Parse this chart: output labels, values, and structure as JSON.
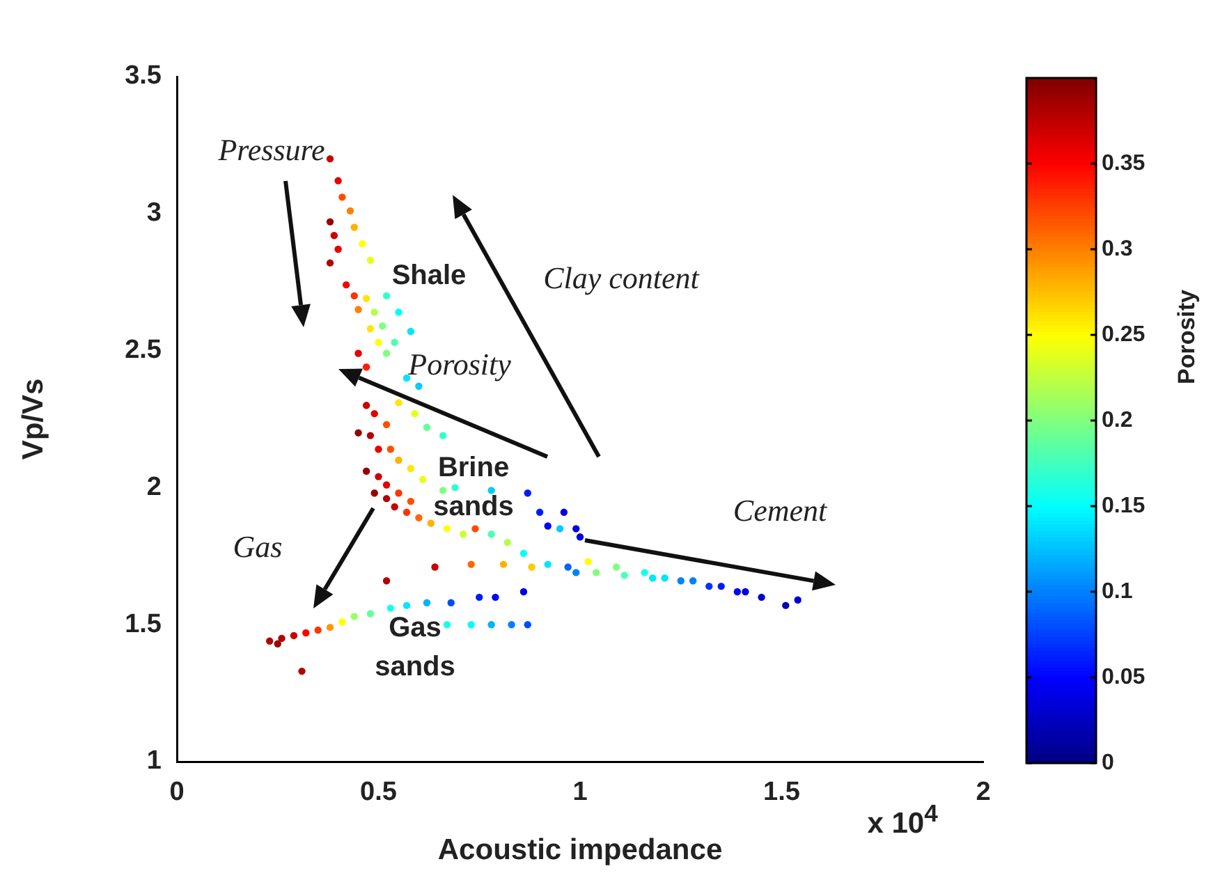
{
  "chart_data": {
    "type": "scatter",
    "xlabel": "Acoustic impedance",
    "ylabel": "Vp/Vs",
    "clabel": "Porosity",
    "xlim": [
      0,
      2
    ],
    "xticks": [
      0,
      0.5,
      1,
      1.5,
      2
    ],
    "ylim": [
      1,
      3.5
    ],
    "yticks": [
      1,
      1.5,
      2,
      2.5,
      3,
      3.5
    ],
    "clim": [
      0,
      0.4
    ],
    "cticks": [
      0,
      0.05,
      0.1,
      0.15,
      0.2,
      0.25,
      0.3,
      0.35
    ],
    "marker": "circle",
    "series": [
      {
        "x": [
          0.38,
          0.4,
          0.41,
          0.43,
          0.44,
          0.46,
          0.48,
          0.38,
          0.39,
          0.4,
          0.38,
          0.42,
          0.44,
          0.45,
          0.47,
          0.49,
          0.52,
          0.55,
          0.58,
          0.51,
          0.54,
          0.48,
          0.5,
          0.45,
          0.47,
          0.52,
          0.57,
          0.6,
          0.47,
          0.49,
          0.52,
          0.55,
          0.59,
          0.62,
          0.66,
          0.45,
          0.48,
          0.5,
          0.53,
          0.55,
          0.58,
          0.61,
          0.66,
          0.69,
          0.78,
          0.87,
          0.47,
          0.5,
          0.52,
          0.55,
          0.58,
          0.49,
          0.52,
          0.54,
          0.57,
          0.6,
          0.63,
          0.67,
          0.71,
          0.74,
          0.78,
          0.82,
          0.86,
          0.9,
          0.92,
          0.95,
          0.96,
          0.99,
          1.0,
          0.88,
          0.92,
          0.64,
          0.73,
          0.81,
          0.52,
          0.97,
          0.99,
          1.02,
          1.04,
          1.09,
          1.11,
          1.16,
          1.18,
          1.21,
          1.25,
          1.28,
          1.32,
          1.35,
          1.39,
          1.41,
          1.45,
          1.51,
          1.54,
          0.23,
          0.25,
          0.26,
          0.29,
          0.32,
          0.35,
          0.38,
          0.41,
          0.44,
          0.48,
          0.53,
          0.57,
          0.62,
          0.68,
          0.75,
          0.79,
          0.86,
          0.67,
          0.73,
          0.78,
          0.83,
          0.87,
          0.31
        ],
        "values": [
          3.2,
          3.12,
          3.06,
          3.01,
          2.95,
          2.89,
          2.83,
          2.97,
          2.92,
          2.87,
          2.82,
          2.74,
          2.7,
          2.65,
          2.69,
          2.64,
          2.7,
          2.64,
          2.57,
          2.59,
          2.53,
          2.58,
          2.53,
          2.49,
          2.44,
          2.49,
          2.4,
          2.37,
          2.3,
          2.27,
          2.23,
          2.31,
          2.27,
          2.22,
          2.19,
          2.2,
          2.19,
          2.14,
          2.14,
          2.1,
          2.07,
          2.03,
          1.99,
          2.0,
          1.99,
          1.98,
          2.06,
          2.04,
          2.01,
          1.98,
          1.95,
          1.98,
          1.96,
          1.93,
          1.91,
          1.89,
          1.87,
          1.85,
          1.83,
          1.85,
          1.83,
          1.8,
          1.76,
          1.91,
          1.86,
          1.85,
          1.91,
          1.85,
          1.82,
          1.71,
          1.72,
          1.71,
          1.72,
          1.72,
          1.66,
          1.71,
          1.69,
          1.73,
          1.69,
          1.71,
          1.68,
          1.69,
          1.67,
          1.67,
          1.66,
          1.66,
          1.64,
          1.64,
          1.62,
          1.62,
          1.6,
          1.57,
          1.59,
          1.44,
          1.43,
          1.45,
          1.46,
          1.47,
          1.48,
          1.49,
          1.51,
          1.53,
          1.54,
          1.56,
          1.57,
          1.58,
          1.58,
          1.6,
          1.6,
          1.62,
          1.5,
          1.5,
          1.5,
          1.5,
          1.5,
          1.33
        ],
        "cvalues": [
          0.37,
          0.36,
          0.32,
          0.3,
          0.28,
          0.25,
          0.24,
          0.39,
          0.37,
          0.36,
          0.38,
          0.35,
          0.33,
          0.3,
          0.26,
          0.22,
          0.17,
          0.15,
          0.14,
          0.2,
          0.18,
          0.26,
          0.25,
          0.36,
          0.34,
          0.2,
          0.14,
          0.13,
          0.37,
          0.36,
          0.32,
          0.26,
          0.24,
          0.19,
          0.17,
          0.39,
          0.38,
          0.36,
          0.32,
          0.28,
          0.26,
          0.24,
          0.2,
          0.17,
          0.13,
          0.06,
          0.39,
          0.37,
          0.36,
          0.33,
          0.32,
          0.39,
          0.38,
          0.37,
          0.33,
          0.31,
          0.28,
          0.25,
          0.23,
          0.32,
          0.18,
          0.22,
          0.15,
          0.06,
          0.05,
          0.13,
          0.04,
          0.04,
          0.04,
          0.27,
          0.14,
          0.37,
          0.31,
          0.28,
          0.38,
          0.09,
          0.1,
          0.25,
          0.2,
          0.2,
          0.18,
          0.16,
          0.14,
          0.14,
          0.1,
          0.1,
          0.07,
          0.06,
          0.05,
          0.04,
          0.03,
          0.02,
          0.03,
          0.38,
          0.39,
          0.38,
          0.37,
          0.35,
          0.33,
          0.29,
          0.25,
          0.21,
          0.19,
          0.16,
          0.14,
          0.12,
          0.08,
          0.06,
          0.05,
          0.04,
          0.16,
          0.15,
          0.12,
          0.1,
          0.08,
          0.38
        ]
      }
    ],
    "annotations": [
      "Pressure",
      "Clay content",
      "Porosity",
      "Cement",
      "Gas",
      "Shale",
      "Brine sands",
      "Gas sands",
      "x 10$^{4}$"
    ]
  }
}
